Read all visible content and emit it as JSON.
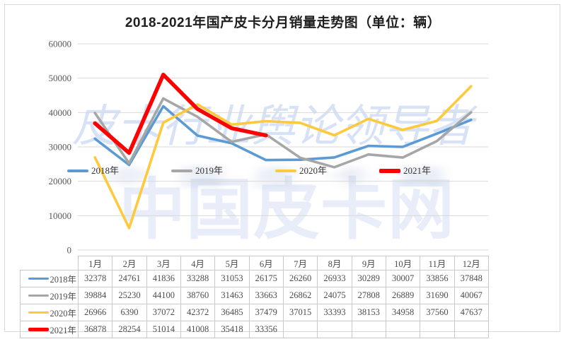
{
  "chart_data": {
    "type": "line",
    "title": "2018-2021年国产皮卡分月销量走势图（单位：辆）",
    "categories": [
      "1月",
      "2月",
      "3月",
      "4月",
      "5月",
      "6月",
      "7月",
      "8月",
      "9月",
      "10月",
      "11月",
      "12月"
    ],
    "series": [
      {
        "name": "2018年",
        "color": "#5B9BD5",
        "line_width": 3.6,
        "values": [
          32378,
          24761,
          41836,
          33288,
          31053,
          26175,
          26260,
          26933,
          30289,
          30007,
          33856,
          37848
        ]
      },
      {
        "name": "2019年",
        "color": "#A6A6A6",
        "line_width": 3.6,
        "values": [
          39884,
          25230,
          44100,
          38760,
          31463,
          33663,
          26862,
          24075,
          27808,
          26889,
          31690,
          40067
        ]
      },
      {
        "name": "2020年",
        "color": "#FFC93E",
        "line_width": 3.6,
        "values": [
          26966,
          6390,
          37072,
          42372,
          36485,
          37479,
          37015,
          33393,
          38153,
          34958,
          37560,
          47637
        ]
      },
      {
        "name": "2021年",
        "color": "#FF0000",
        "line_width": 5.5,
        "values": [
          36878,
          28254,
          51014,
          41008,
          35418,
          33356,
          null,
          null,
          null,
          null,
          null,
          null
        ]
      }
    ],
    "y_ticks": [
      0,
      10000,
      20000,
      30000,
      40000,
      50000,
      60000
    ],
    "ylim": [
      0,
      60000
    ],
    "grid": true,
    "legend_position": "inside-middle",
    "legend_labels": [
      "2018年",
      "2019年",
      "2020年",
      "2021年"
    ]
  },
  "watermarks": {
    "script_text": "皮卡行业舆论领导者",
    "main_text": "中国皮卡网"
  },
  "colors": {
    "gridline": "#D9D9D9",
    "axis_text": "#595959",
    "table_border": "#C9C9C9",
    "table_text": "#4D4D4D",
    "title_text": "#1F1F1F",
    "watermark_main": "#E8EDF9",
    "watermark_script": "#94B0E6",
    "frame_border": "#D8D8D8"
  }
}
